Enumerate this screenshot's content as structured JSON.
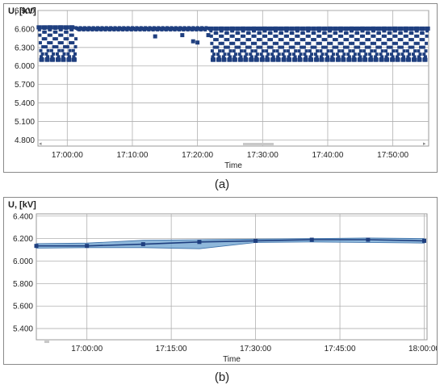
{
  "captions": {
    "a": "(a)",
    "b": "(b)"
  },
  "colors": {
    "series": "#1f3f7f",
    "band": "#6aa0cf",
    "band_line": "#3a6fa8",
    "grid": "#b0b0b0",
    "scroll": "#c8c8c8"
  },
  "chart_data": [
    {
      "type": "scatter",
      "id": "a",
      "ylabel": "U, [kV]",
      "xlabel": "Time",
      "ylim": [
        4.7,
        6.9
      ],
      "yticks": [
        "6.900",
        "6.600",
        "6.300",
        "6.000",
        "5.700",
        "5.400",
        "5.100",
        "4.800"
      ],
      "ytick_values": [
        6.9,
        6.6,
        6.3,
        6.0,
        5.7,
        5.4,
        5.1,
        4.8
      ],
      "xlim": [
        "16:55:30",
        "17:55:30"
      ],
      "xticks": [
        "17:00:00",
        "17:10:00",
        "17:20:00",
        "17:30:00",
        "17:40:00",
        "17:50:00"
      ],
      "grid": true,
      "series": [
        {
          "segments": [
            {
              "from": "16:55:40",
              "to": "17:01:20",
              "pattern": "oscillating",
              "values": [
                6.1,
                6.62
              ]
            },
            {
              "from": "17:01:20",
              "to": "17:21:30",
              "pattern": "steady",
              "values": [
                6.55,
                6.62
              ]
            },
            {
              "from": "17:22:00",
              "to": "17:55:20",
              "pattern": "oscillating",
              "values": [
                6.1,
                6.6
              ]
            }
          ],
          "outliers": [
            {
              "t": "17:13:30",
              "v": 6.48
            },
            {
              "t": "17:17:40",
              "v": 6.5
            },
            {
              "t": "17:19:20",
              "v": 6.4
            },
            {
              "t": "17:20:00",
              "v": 6.38
            },
            {
              "t": "17:21:40",
              "v": 6.5
            }
          ]
        }
      ]
    },
    {
      "type": "line",
      "id": "b",
      "ylabel": "U, [kV]",
      "xlabel": "Time",
      "ylim": [
        5.3,
        6.42
      ],
      "yticks": [
        "6.400",
        "6.200",
        "6.000",
        "5.800",
        "5.600",
        "5.400"
      ],
      "ytick_values": [
        6.4,
        6.2,
        6.0,
        5.8,
        5.6,
        5.4
      ],
      "xlim": [
        "16:51:00",
        "18:00:30"
      ],
      "xticks": [
        "17:00:00",
        "17:15:00",
        "17:30:00",
        "17:45:00",
        "18:00:00"
      ],
      "grid": true,
      "series": [
        {
          "x": [
            "16:51:00",
            "17:00:00",
            "17:10:00",
            "17:20:00",
            "17:30:00",
            "17:40:00",
            "17:50:00",
            "18:00:00"
          ],
          "values": [
            6.135,
            6.135,
            6.15,
            6.17,
            6.18,
            6.19,
            6.19,
            6.18
          ],
          "upper": [
            6.155,
            6.16,
            6.185,
            6.19,
            6.195,
            6.2,
            6.205,
            6.2
          ],
          "lower": [
            6.115,
            6.12,
            6.12,
            6.11,
            6.165,
            6.17,
            6.165,
            6.16
          ]
        }
      ]
    }
  ]
}
